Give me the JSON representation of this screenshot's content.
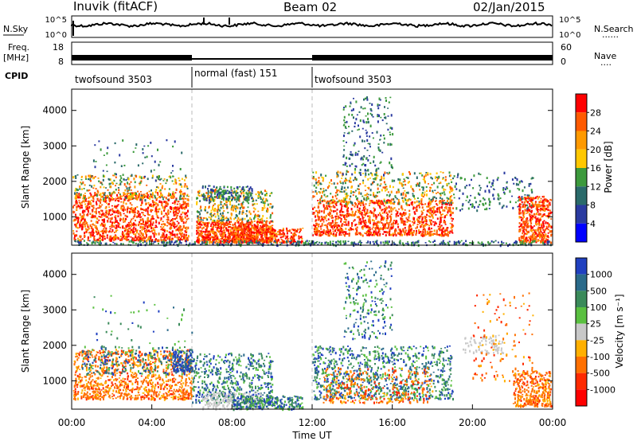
{
  "header": {
    "station": "Inuvik (fitACF)",
    "beam": "Beam 02",
    "date": "02/Jan/2015"
  },
  "labels": {
    "nsky": "N.Sky",
    "freq": "Freq.",
    "mhz": "[MHz]",
    "cpid": "CPID",
    "nsearch": "N.Search",
    "nave": "Nave",
    "dots": "......",
    "dots_short": "...."
  },
  "cpid_segments": [
    {
      "label": "twofsound 3503",
      "start_h": 0,
      "end_h": 6
    },
    {
      "label": "normal (fast) 151",
      "start_h": 6,
      "end_h": 12
    },
    {
      "label": "twofsound 3503",
      "start_h": 12,
      "end_h": 24
    }
  ],
  "chart_data": [
    {
      "type": "line",
      "name": "noise",
      "left_ticks": [
        "10^5",
        "10^0"
      ],
      "right_ticks": [
        "10^5",
        "10^0"
      ]
    },
    {
      "type": "line",
      "name": "frequency",
      "left_ticks": [
        "18",
        "8"
      ],
      "right_ticks": [
        "60",
        "0"
      ]
    },
    {
      "type": "heatmap",
      "name": "power",
      "ylabel": "Slant Range [km]",
      "yticks": [
        1000,
        2000,
        3000,
        4000
      ],
      "ylim": [
        200,
        4600
      ],
      "xlim": [
        0,
        24
      ],
      "colorbar": {
        "label": "Power [dB]",
        "ticks": [
          "28",
          "24",
          "20",
          "16",
          "12",
          "8",
          "4"
        ],
        "colors": [
          "#ff0000",
          "#ff5a00",
          "#ff9a00",
          "#ffc800",
          "#3c9a3c",
          "#2a6a6a",
          "#2a3aa0",
          "#0000ff"
        ]
      }
    },
    {
      "type": "heatmap",
      "name": "velocity",
      "ylabel": "Slant Range [km]",
      "yticks": [
        1000,
        2000,
        3000,
        4000
      ],
      "ylim": [
        200,
        4600
      ],
      "xlim": [
        0,
        24
      ],
      "xticks": [
        "00:00",
        "04:00",
        "08:00",
        "12:00",
        "16:00",
        "20:00",
        "00:00"
      ],
      "xlabel": "Time UT",
      "colorbar": {
        "label": "Velocity [m s⁻¹]",
        "ticks": [
          "1000",
          "500",
          "100",
          "25",
          "-25",
          "-100",
          "-500",
          "-1000"
        ],
        "colors": [
          "#2040c0",
          "#2a6a8a",
          "#3a8a5a",
          "#5ac040",
          "#c8c8c8",
          "#ffb000",
          "#ff7000",
          "#ff2a00",
          "#ff0000"
        ]
      }
    }
  ]
}
